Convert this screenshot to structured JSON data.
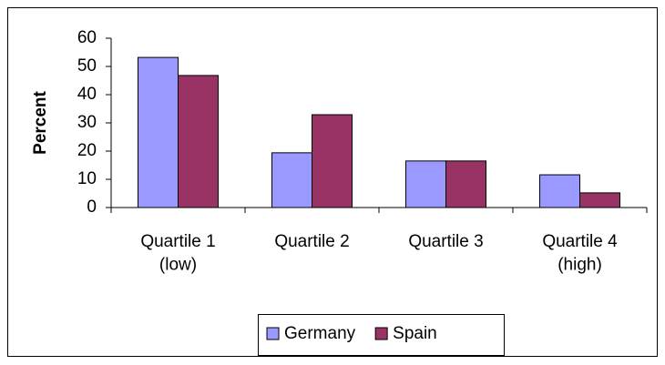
{
  "chart_data": {
    "type": "bar",
    "y_label": "Percent",
    "categories": [
      "Quartile 1\n(low)",
      "Quartile 2",
      "Quartile 3",
      "Quartile 4\n(high)"
    ],
    "series": [
      {
        "name": "Germany",
        "color": "#9999ff",
        "values": [
          53.2,
          19.4,
          16.5,
          11.6
        ]
      },
      {
        "name": "Spain",
        "color": "#993366",
        "values": [
          46.8,
          32.9,
          16.5,
          5.2
        ]
      }
    ],
    "ylim": [
      0,
      60
    ],
    "yticks": [
      0,
      10,
      20,
      30,
      40,
      50,
      60
    ],
    "grid": false,
    "legend": "bottom"
  }
}
